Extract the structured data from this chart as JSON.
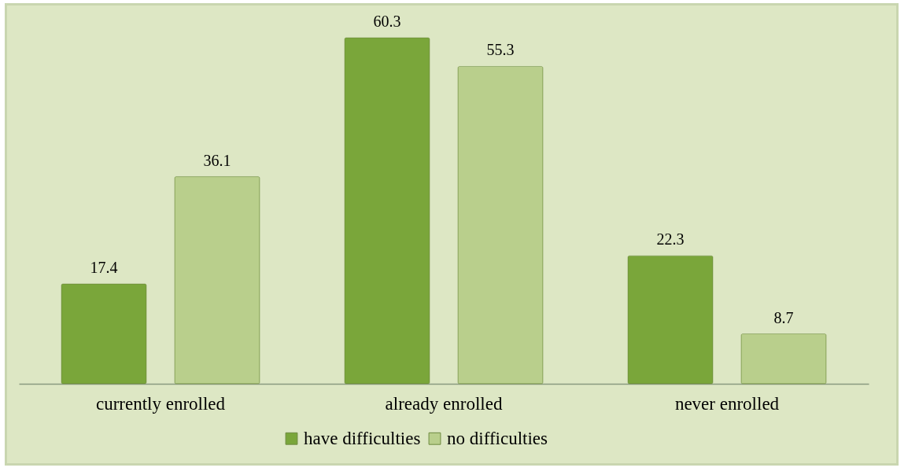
{
  "chart_data": {
    "type": "bar",
    "categories": [
      "currently enrolled",
      "already enrolled",
      "never enrolled"
    ],
    "series": [
      {
        "name": "have difficulties",
        "color": "#7aa63a",
        "values": [
          17.4,
          60.3,
          22.3
        ]
      },
      {
        "name": "no difficulties",
        "color": "#b9cf8c",
        "values": [
          36.1,
          55.3,
          8.7
        ]
      }
    ],
    "data_labels": true,
    "legend": "bottom"
  }
}
